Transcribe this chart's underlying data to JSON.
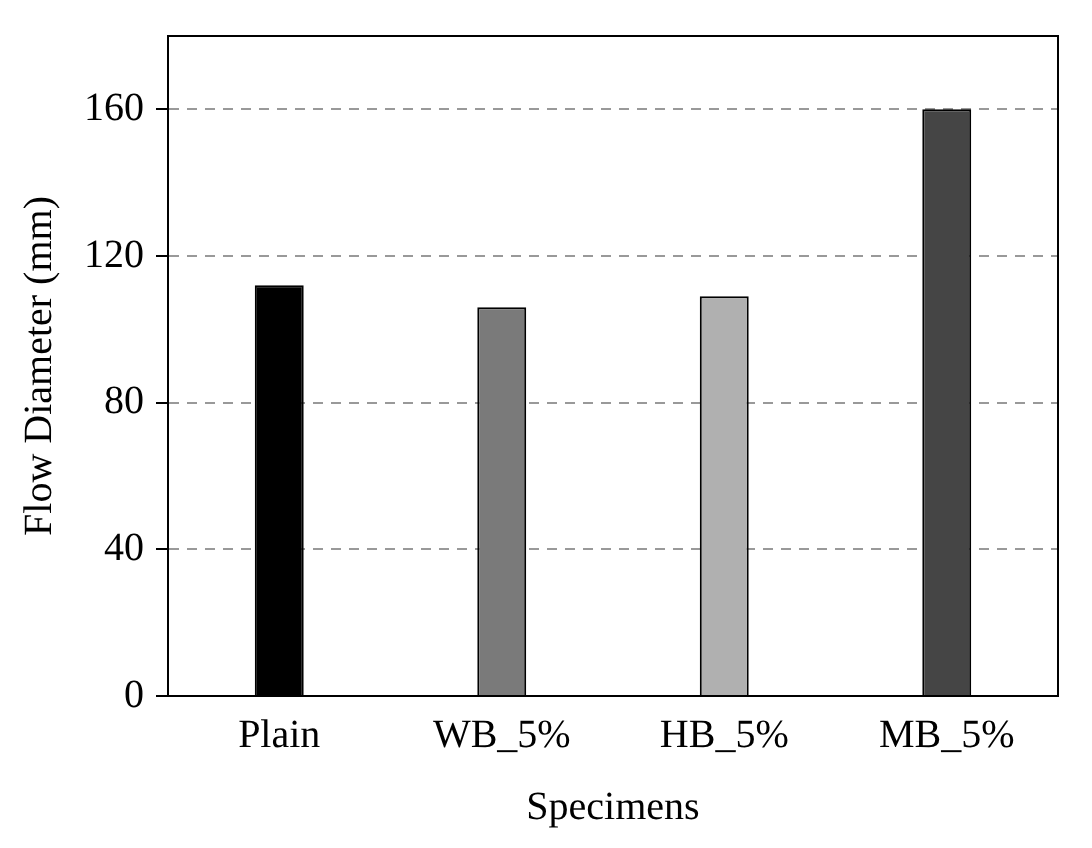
{
  "chart_data": {
    "type": "bar",
    "xlabel": "Specimens",
    "ylabel": "Flow Diameter (mm)",
    "categories": [
      "Plain",
      "WB_5%",
      "HB_5%",
      "MB_5%"
    ],
    "values": [
      112,
      106,
      109,
      160
    ],
    "colors": [
      "#000000",
      "#7a7a7a",
      "#b0b0b0",
      "#454545"
    ],
    "ylim": [
      0,
      180
    ],
    "yticks": [
      0,
      40,
      80,
      120,
      160
    ],
    "grid": "y",
    "legend": false
  }
}
